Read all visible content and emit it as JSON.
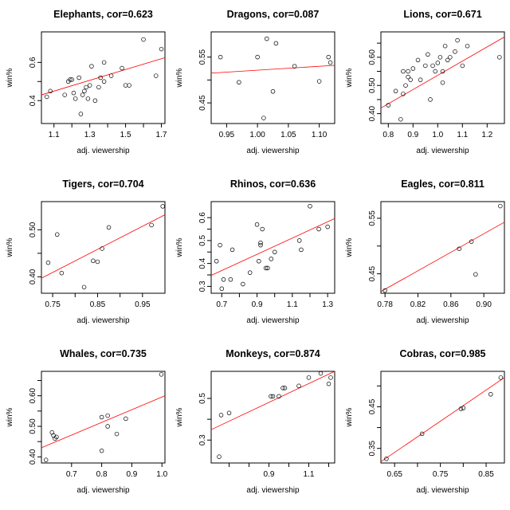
{
  "chart_data": [
    {
      "type": "scatter",
      "title": "Elephants, cor=0.623",
      "xlabel": "adj. viewership",
      "ylabel": "win%",
      "xlim": [
        1.03,
        1.72
      ],
      "ylim": [
        0.28,
        0.76
      ],
      "xticks": [
        1.1,
        1.2,
        1.3,
        1.4,
        1.5,
        1.6,
        1.7
      ],
      "xtick_labels": [
        "1.1",
        "",
        "1.3",
        "",
        "1.5",
        "",
        "1.7"
      ],
      "yticks": [
        0.4,
        0.5,
        0.6
      ],
      "ytick_labels": [
        "0.4",
        "",
        "0.6"
      ],
      "fit": {
        "x": [
          1.03,
          1.72
        ],
        "y": [
          0.43,
          0.625
        ]
      },
      "x": [
        1.06,
        1.08,
        1.16,
        1.18,
        1.19,
        1.2,
        1.21,
        1.22,
        1.24,
        1.25,
        1.26,
        1.27,
        1.28,
        1.29,
        1.3,
        1.31,
        1.33,
        1.35,
        1.36,
        1.38,
        1.38,
        1.42,
        1.48,
        1.5,
        1.52,
        1.6,
        1.67,
        1.7
      ],
      "y": [
        0.42,
        0.45,
        0.43,
        0.5,
        0.51,
        0.51,
        0.44,
        0.41,
        0.52,
        0.33,
        0.43,
        0.45,
        0.47,
        0.41,
        0.48,
        0.58,
        0.4,
        0.47,
        0.52,
        0.5,
        0.6,
        0.53,
        0.57,
        0.48,
        0.48,
        0.72,
        0.53,
        0.67
      ]
    },
    {
      "type": "scatter",
      "title": "Dragons, cor=0.087",
      "xlabel": "adj. viewership",
      "ylabel": "win%",
      "xlim": [
        0.925,
        1.125
      ],
      "ylim": [
        0.405,
        0.605
      ],
      "xticks": [
        0.95,
        1.0,
        1.05,
        1.1
      ],
      "xtick_labels": [
        "0.95",
        "1.00",
        "1.05",
        "1.10"
      ],
      "yticks": [
        0.45,
        0.5,
        0.55
      ],
      "ytick_labels": [
        "0.45",
        "",
        "0.55"
      ],
      "fit": {
        "x": [
          0.925,
          1.125
        ],
        "y": [
          0.515,
          0.532
        ]
      },
      "x": [
        0.94,
        0.97,
        1.0,
        1.01,
        1.015,
        1.025,
        1.03,
        1.06,
        1.1,
        1.115,
        1.118
      ],
      "y": [
        0.55,
        0.495,
        0.55,
        0.417,
        0.59,
        0.475,
        0.58,
        0.53,
        0.497,
        0.55,
        0.538
      ]
    },
    {
      "type": "scatter",
      "title": "Lions, cor=0.671",
      "xlabel": "adj. viewership",
      "ylabel": "win%",
      "xlim": [
        0.77,
        1.27
      ],
      "ylim": [
        0.365,
        0.69
      ],
      "xticks": [
        0.8,
        0.9,
        1.0,
        1.1,
        1.2
      ],
      "xtick_labels": [
        "0.8",
        "0.9",
        "1.0",
        "1.1",
        "1.2"
      ],
      "yticks": [
        0.4,
        0.45,
        0.5,
        0.55,
        0.6,
        0.65
      ],
      "ytick_labels": [
        "0.40",
        "",
        "0.50",
        "",
        "0.60",
        ""
      ],
      "fit": {
        "x": [
          0.77,
          1.27
        ],
        "y": [
          0.42,
          0.672
        ]
      },
      "x": [
        0.8,
        0.83,
        0.85,
        0.86,
        0.86,
        0.87,
        0.88,
        0.88,
        0.89,
        0.9,
        0.92,
        0.93,
        0.95,
        0.96,
        0.97,
        0.98,
        0.99,
        1.0,
        1.01,
        1.02,
        1.02,
        1.03,
        1.04,
        1.05,
        1.07,
        1.08,
        1.1,
        1.12,
        1.25
      ],
      "y": [
        0.43,
        0.48,
        0.38,
        0.55,
        0.47,
        0.5,
        0.53,
        0.55,
        0.52,
        0.56,
        0.59,
        0.52,
        0.57,
        0.61,
        0.45,
        0.57,
        0.55,
        0.58,
        0.6,
        0.51,
        0.55,
        0.64,
        0.59,
        0.6,
        0.62,
        0.66,
        0.57,
        0.64,
        0.6
      ]
    },
    {
      "type": "scatter",
      "title": "Tigers, cor=0.704",
      "xlabel": "adj. viewership",
      "ylabel": "win%",
      "xlim": [
        0.725,
        1.0
      ],
      "ylim": [
        0.365,
        0.56
      ],
      "xticks": [
        0.75,
        0.8,
        0.85,
        0.9,
        0.95
      ],
      "xtick_labels": [
        "0.75",
        "",
        "0.85",
        "",
        "0.95"
      ],
      "yticks": [
        0.4,
        0.45,
        0.5
      ],
      "ytick_labels": [
        "0.40",
        "",
        "0.50"
      ],
      "fit": {
        "x": [
          0.725,
          1.0
        ],
        "y": [
          0.397,
          0.532
        ]
      },
      "x": [
        0.74,
        0.76,
        0.77,
        0.82,
        0.84,
        0.85,
        0.86,
        0.875,
        0.97,
        0.995
      ],
      "y": [
        0.43,
        0.49,
        0.408,
        0.378,
        0.434,
        0.432,
        0.46,
        0.505,
        0.51,
        0.55
      ]
    },
    {
      "type": "scatter",
      "title": "Rhinos, cor=0.636",
      "xlabel": "adj. viewership",
      "ylabel": "win%",
      "xlim": [
        0.64,
        1.34
      ],
      "ylim": [
        0.27,
        0.67
      ],
      "xticks": [
        0.7,
        0.8,
        0.9,
        1.0,
        1.1,
        1.2,
        1.3
      ],
      "xtick_labels": [
        "0.7",
        "",
        "0.9",
        "",
        "1.1",
        "",
        "1.3"
      ],
      "yticks": [
        0.3,
        0.35,
        0.4,
        0.45,
        0.5,
        0.55,
        0.6
      ],
      "ytick_labels": [
        "0.3",
        "",
        "0.4",
        "",
        "0.5",
        "",
        "0.6"
      ],
      "fit": {
        "x": [
          0.64,
          1.34
        ],
        "y": [
          0.348,
          0.596
        ]
      },
      "x": [
        0.67,
        0.69,
        0.7,
        0.71,
        0.75,
        0.76,
        0.82,
        0.86,
        0.9,
        0.91,
        0.92,
        0.92,
        0.93,
        0.95,
        0.96,
        0.98,
        1.0,
        1.14,
        1.15,
        1.2,
        1.25,
        1.3
      ],
      "y": [
        0.41,
        0.48,
        0.29,
        0.33,
        0.33,
        0.46,
        0.31,
        0.36,
        0.57,
        0.41,
        0.49,
        0.48,
        0.55,
        0.38,
        0.38,
        0.42,
        0.45,
        0.5,
        0.46,
        0.65,
        0.55,
        0.56
      ]
    },
    {
      "type": "scatter",
      "title": "Eagles, cor=0.811",
      "xlabel": "adj. viewership",
      "ylabel": "win%",
      "xlim": [
        0.775,
        0.925
      ],
      "ylim": [
        0.415,
        0.58
      ],
      "xticks": [
        0.78,
        0.82,
        0.86,
        0.9
      ],
      "xtick_labels": [
        "0.78",
        "0.82",
        "0.86",
        "0.90"
      ],
      "yticks": [
        0.45,
        0.5,
        0.55
      ],
      "ytick_labels": [
        "0.45",
        "",
        "0.55"
      ],
      "fit": {
        "x": [
          0.775,
          0.925
        ],
        "y": [
          0.418,
          0.543
        ]
      },
      "x": [
        0.78,
        0.87,
        0.885,
        0.89,
        0.92
      ],
      "y": [
        0.42,
        0.495,
        0.508,
        0.449,
        0.572
      ]
    },
    {
      "type": "scatter",
      "title": "Whales, cor=0.735",
      "xlabel": "adj. viewership",
      "ylabel": "win%",
      "xlim": [
        0.6,
        1.01
      ],
      "ylim": [
        0.38,
        0.68
      ],
      "xticks": [
        0.7,
        0.8,
        0.9,
        1.0
      ],
      "xtick_labels": [
        "0.7",
        "0.8",
        "0.9",
        "1.0"
      ],
      "yticks": [
        0.4,
        0.45,
        0.5,
        0.55,
        0.6,
        0.65
      ],
      "ytick_labels": [
        "0.40",
        "",
        "0.50",
        "",
        "0.60",
        ""
      ],
      "fit": {
        "x": [
          0.6,
          1.01
        ],
        "y": [
          0.43,
          0.6
        ]
      },
      "x": [
        0.615,
        0.635,
        0.64,
        0.645,
        0.65,
        0.8,
        0.8,
        0.82,
        0.82,
        0.85,
        0.88,
        0.998
      ],
      "y": [
        0.39,
        0.48,
        0.47,
        0.46,
        0.465,
        0.42,
        0.53,
        0.535,
        0.5,
        0.475,
        0.525,
        0.67
      ]
    },
    {
      "type": "scatter",
      "title": "Monkeys, cor=0.874",
      "xlabel": "adj. viewership",
      "ylabel": "win%",
      "xlim": [
        0.61,
        1.23
      ],
      "ylim": [
        0.19,
        0.63
      ],
      "xticks": [
        0.7,
        0.8,
        0.9,
        1.0,
        1.1,
        1.2
      ],
      "xtick_labels": [
        "",
        "",
        "0.9",
        "",
        "1.1",
        ""
      ],
      "yticks": [
        0.3,
        0.4,
        0.5
      ],
      "ytick_labels": [
        "0.3",
        "",
        "0.5"
      ],
      "fit": {
        "x": [
          0.61,
          1.23
        ],
        "y": [
          0.35,
          0.63
        ]
      },
      "x": [
        0.65,
        0.66,
        0.7,
        0.91,
        0.92,
        0.95,
        0.97,
        0.98,
        1.05,
        1.1,
        1.16,
        1.2,
        1.21
      ],
      "y": [
        0.22,
        0.42,
        0.43,
        0.51,
        0.51,
        0.51,
        0.55,
        0.55,
        0.56,
        0.6,
        0.62,
        0.57,
        0.6
      ]
    },
    {
      "type": "scatter",
      "title": "Cobras, cor=0.985",
      "xlabel": "adj. viewership",
      "ylabel": "win%",
      "xlim": [
        0.62,
        0.89
      ],
      "ylim": [
        0.315,
        0.535
      ],
      "xticks": [
        0.65,
        0.7,
        0.75,
        0.8,
        0.85
      ],
      "xtick_labels": [
        "0.65",
        "",
        "0.75",
        "",
        "0.85"
      ],
      "yticks": [
        0.35,
        0.4,
        0.45,
        0.5
      ],
      "ytick_labels": [
        "0.35",
        "",
        "0.45",
        ""
      ],
      "fit": {
        "x": [
          0.62,
          0.89
        ],
        "y": [
          0.318,
          0.52
        ]
      },
      "x": [
        0.632,
        0.71,
        0.795,
        0.8,
        0.86,
        0.882
      ],
      "y": [
        0.325,
        0.385,
        0.445,
        0.447,
        0.48,
        0.52
      ]
    }
  ]
}
